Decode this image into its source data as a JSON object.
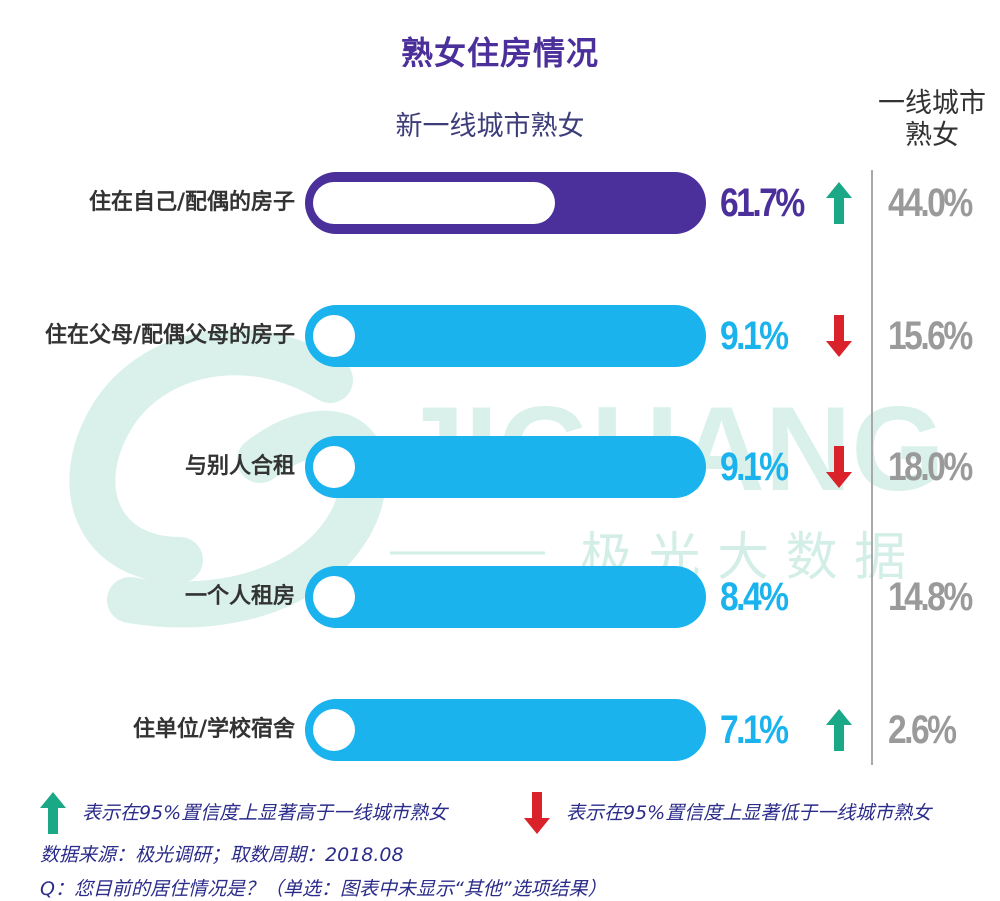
{
  "title": "熟女住房情况",
  "subtitle_left": "新一线城市熟女",
  "subtitle_right_line1": "一线城市",
  "subtitle_right_line2": "熟女",
  "watermark": {
    "logo_text": "JIGUANG",
    "logo_sub": "极 光 大 数 据"
  },
  "colors": {
    "highlight_bar": "#4b2f9a",
    "normal_bar": "#1ab3ee",
    "up_arrow": "#1aa886",
    "down_arrow": "#d9222a",
    "right_value": "#9a9a9a"
  },
  "chart_data": {
    "type": "bar",
    "title": "熟女住房情况",
    "orientation": "horizontal",
    "unit": "%",
    "xlim": [
      0,
      100
    ],
    "categories": [
      "住在自己/配偶的房子",
      "住在父母/配偶父母的房子",
      "与别人合租",
      "一个人租房",
      "住单位/学校宿舍"
    ],
    "series": [
      {
        "name": "新一线城市熟女",
        "values": [
          61.7,
          9.1,
          9.1,
          8.4,
          7.1
        ],
        "labels": [
          "61.7%",
          "9.1%",
          "9.1%",
          "8.4%",
          "7.1%"
        ],
        "significance": [
          "up",
          "down",
          "down",
          "none",
          "up"
        ]
      },
      {
        "name": "一线城市熟女",
        "values": [
          44.0,
          15.6,
          18.0,
          14.8,
          2.6
        ],
        "labels": [
          "44.0%",
          "15.6%",
          "18.0%",
          "14.8%",
          "2.6%"
        ]
      }
    ]
  },
  "legend": {
    "up_text": "表示在95%置信度上显著高于一线城市熟女",
    "down_text": "表示在95%置信度上显著低于一线城市熟女"
  },
  "source": "数据来源：极光调研；取数周期：2018.08",
  "question": "Q：您目前的居住情况是？（单选：图表中未显示“其他”选项结果）"
}
